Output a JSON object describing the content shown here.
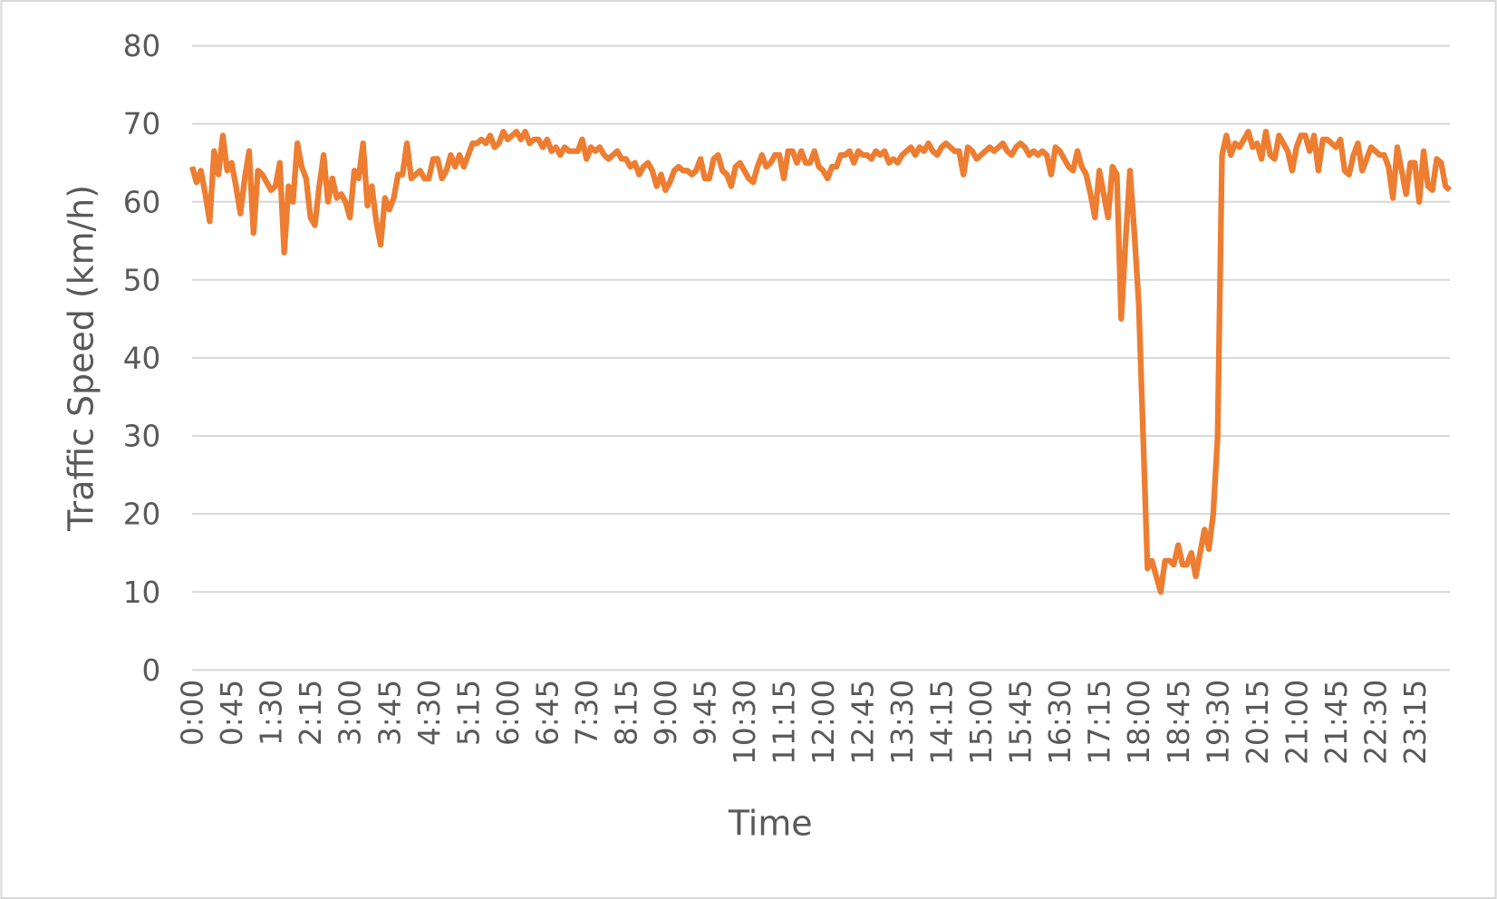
{
  "chart_data": {
    "type": "line",
    "y_label": "Traffic Speed (km/h)",
    "x_label": "Time",
    "ylim": [
      0,
      80
    ],
    "yticks": [
      0,
      10,
      20,
      30,
      40,
      50,
      60,
      70,
      80
    ],
    "grid": true,
    "categories": [
      "0:00",
      null,
      null,
      null,
      null,
      null,
      null,
      null,
      null,
      "0:45",
      null,
      null,
      null,
      null,
      null,
      null,
      null,
      null,
      "1:30",
      null,
      null,
      null,
      null,
      null,
      null,
      null,
      null,
      "2:15",
      null,
      null,
      null,
      null,
      null,
      null,
      null,
      null,
      "3:00",
      null,
      null,
      null,
      null,
      null,
      null,
      null,
      null,
      "3:45",
      null,
      null,
      null,
      null,
      null,
      null,
      null,
      null,
      "4:30",
      null,
      null,
      null,
      null,
      null,
      null,
      null,
      null,
      "5:15",
      null,
      null,
      null,
      null,
      null,
      null,
      null,
      null,
      "6:00",
      null,
      null,
      null,
      null,
      null,
      null,
      null,
      null,
      "6:45",
      null,
      null,
      null,
      null,
      null,
      null,
      null,
      null,
      "7:30",
      null,
      null,
      null,
      null,
      null,
      null,
      null,
      null,
      "8:15",
      null,
      null,
      null,
      null,
      null,
      null,
      null,
      null,
      "9:00",
      null,
      null,
      null,
      null,
      null,
      null,
      null,
      null,
      "9:45",
      null,
      null,
      null,
      null,
      null,
      null,
      null,
      null,
      "10:30",
      null,
      null,
      null,
      null,
      null,
      null,
      null,
      null,
      "11:15",
      null,
      null,
      null,
      null,
      null,
      null,
      null,
      null,
      "12:00",
      null,
      null,
      null,
      null,
      null,
      null,
      null,
      null,
      "12:45",
      null,
      null,
      null,
      null,
      null,
      null,
      null,
      null,
      "13:30",
      null,
      null,
      null,
      null,
      null,
      null,
      null,
      null,
      "14:15",
      null,
      null,
      null,
      null,
      null,
      null,
      null,
      null,
      "15:00",
      null,
      null,
      null,
      null,
      null,
      null,
      null,
      null,
      "15:45",
      null,
      null,
      null,
      null,
      null,
      null,
      null,
      null,
      "16:30",
      null,
      null,
      null,
      null,
      null,
      null,
      null,
      null,
      "17:15",
      null,
      null,
      null,
      null,
      null,
      null,
      null,
      null,
      "18:00",
      null,
      null,
      null,
      null,
      null,
      null,
      null,
      null,
      "18:45",
      null,
      null,
      null,
      null,
      null,
      null,
      null,
      null,
      "19:30",
      null,
      null,
      null,
      null,
      null,
      null,
      null,
      null,
      "20:15",
      null,
      null,
      null,
      null,
      null,
      null,
      null,
      null,
      "21:00",
      null,
      null,
      null,
      null,
      null,
      null,
      null,
      null,
      "21:45",
      null,
      null,
      null,
      null,
      null,
      null,
      null,
      null,
      "22:30",
      null,
      null,
      null,
      null,
      null,
      null,
      null,
      null,
      "23:15",
      null,
      null,
      null,
      null,
      null,
      null,
      null,
      null
    ],
    "series": [
      {
        "color": "#ED7D31",
        "values": [
          64.5,
          62.5,
          64,
          61,
          57.5,
          66.5,
          63.5,
          68.5,
          64,
          65,
          62,
          58.5,
          63,
          66.5,
          56,
          64,
          63.5,
          62.5,
          61.5,
          62,
          65,
          53.5,
          62,
          60,
          67.5,
          64.5,
          63,
          58,
          57,
          62,
          66,
          60,
          63,
          60.5,
          61,
          60,
          58,
          64,
          63,
          67.5,
          59.5,
          62,
          57.5,
          54.5,
          60.5,
          59,
          60.5,
          63.5,
          63.5,
          67.5,
          63,
          63.5,
          64,
          63,
          63,
          65.5,
          65.5,
          63,
          64,
          66,
          64.5,
          66,
          64.5,
          66,
          67.5,
          67.5,
          68,
          67.5,
          68.5,
          67,
          67.5,
          69,
          68,
          68.5,
          69,
          68,
          69,
          67.5,
          68,
          68,
          67,
          68,
          66.5,
          67,
          66,
          67,
          66.5,
          66.5,
          66.5,
          68,
          65.5,
          67,
          66.5,
          67,
          66,
          65.5,
          66,
          66.5,
          65.5,
          65.5,
          64.5,
          65,
          63.5,
          64.5,
          65,
          64,
          62,
          63.5,
          61.5,
          62.5,
          64,
          64.5,
          64,
          64,
          63.5,
          64,
          65.5,
          63,
          63,
          65.5,
          66,
          64,
          63.5,
          62,
          64.5,
          65,
          64,
          63,
          62.5,
          64.5,
          66,
          64.5,
          65,
          66,
          66,
          63,
          66.5,
          66.5,
          65,
          66.5,
          65,
          65,
          66.5,
          64.5,
          64,
          63,
          64.5,
          64.5,
          66,
          66,
          66.5,
          65,
          66.5,
          66,
          66,
          65.5,
          66.5,
          66,
          66.5,
          65,
          65.5,
          65,
          66,
          66.5,
          67,
          66,
          67,
          66.5,
          67.5,
          66.5,
          66,
          67,
          67.5,
          67,
          66.5,
          66.5,
          63.5,
          67,
          66.5,
          65.5,
          66,
          66.5,
          67,
          66.5,
          67,
          67.5,
          66.5,
          66,
          67,
          67.5,
          67,
          66,
          66.5,
          66,
          66.5,
          66,
          63.5,
          67,
          66.5,
          65.5,
          64.5,
          64,
          66.5,
          64.5,
          63.5,
          61,
          58,
          64,
          61,
          58,
          64.5,
          63.5,
          45,
          55,
          64,
          56,
          47,
          30,
          13,
          14,
          12,
          10,
          14,
          14,
          13.5,
          16,
          13.5,
          13.5,
          15,
          12,
          15,
          18,
          15.5,
          20,
          30,
          66,
          68.5,
          66,
          67.5,
          67,
          68,
          69,
          67,
          67.5,
          65.5,
          69,
          66,
          65.5,
          68.5,
          67.5,
          66.5,
          64,
          67,
          68.5,
          68.5,
          66.5,
          68.5,
          64,
          68,
          68,
          67.5,
          67,
          68,
          64,
          63.5,
          66,
          67.5,
          64,
          65.5,
          67,
          66.5,
          66,
          66,
          64.5,
          60.5,
          67,
          64,
          61,
          65,
          65,
          60,
          66.5,
          62,
          61.5,
          65.5,
          65,
          62,
          61.5
        ]
      }
    ]
  }
}
